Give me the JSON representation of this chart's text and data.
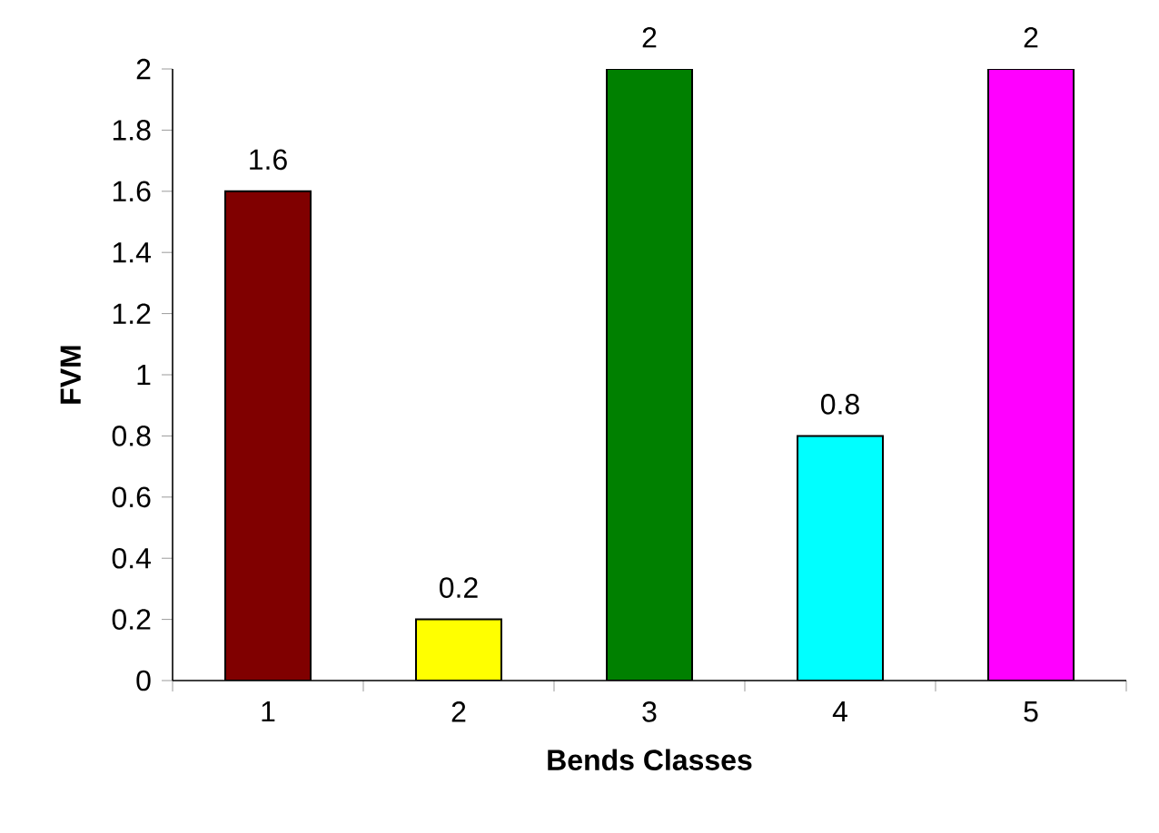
{
  "chart_data": {
    "type": "bar",
    "xlabel": "Bends Classes",
    "ylabel": "FVM",
    "categories": [
      "1",
      "2",
      "3",
      "4",
      "5"
    ],
    "values": [
      1.6,
      0.2,
      2,
      0.8,
      2
    ],
    "colors": [
      "#800000",
      "#ffff00",
      "#008000",
      "#00ffff",
      "#ff00ff"
    ],
    "ylim": [
      0,
      2
    ],
    "yticks": [
      0,
      0.2,
      0.4,
      0.6,
      0.8,
      1,
      1.2,
      1.4,
      1.6,
      1.8,
      2
    ],
    "data_labels": true,
    "grid": false
  }
}
